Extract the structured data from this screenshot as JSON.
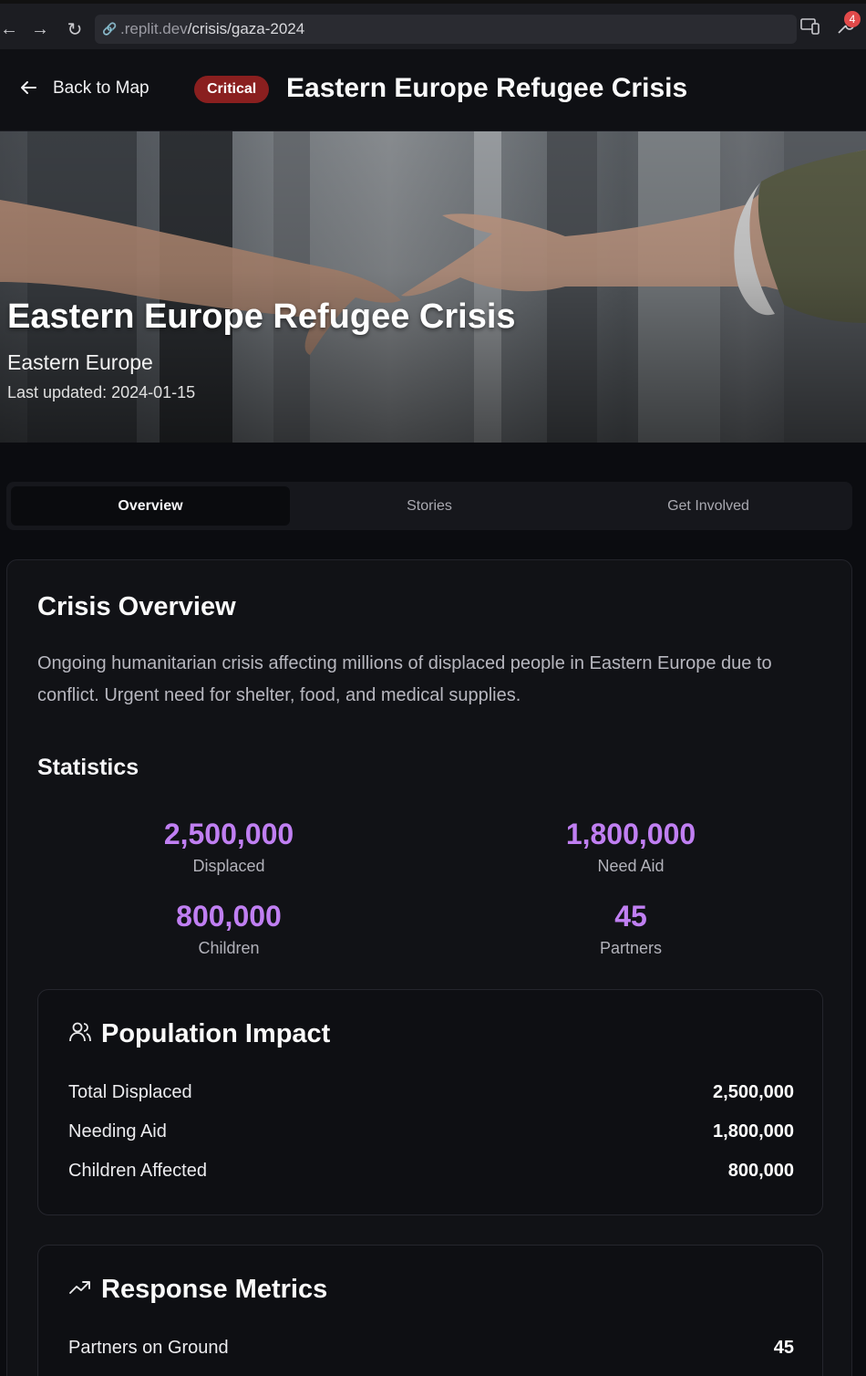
{
  "browser": {
    "url_prefix": ".replit.dev",
    "url_path": "/crisis/gaza-2024",
    "notification_count": "4"
  },
  "header": {
    "back_label": "Back to Map",
    "severity_badge": "Critical",
    "title": "Eastern Europe Refugee Crisis"
  },
  "hero": {
    "title": "Eastern Europe Refugee Crisis",
    "region": "Eastern Europe",
    "last_updated": "Last updated: 2024-01-15"
  },
  "tabs": [
    {
      "label": "Overview",
      "active": true
    },
    {
      "label": "Stories",
      "active": false
    },
    {
      "label": "Get Involved",
      "active": false
    }
  ],
  "overview": {
    "title": "Crisis Overview",
    "description": "Ongoing humanitarian crisis affecting millions of displaced people in Eastern Europe due to conflict. Urgent need for shelter, food, and medical supplies.",
    "statistics_title": "Statistics",
    "stats": [
      {
        "value": "2,500,000",
        "label": "Displaced"
      },
      {
        "value": "1,800,000",
        "label": "Need Aid"
      },
      {
        "value": "800,000",
        "label": "Children"
      },
      {
        "value": "45",
        "label": "Partners"
      }
    ]
  },
  "population_impact": {
    "title": "Population Impact",
    "icon": "users-icon",
    "rows": [
      {
        "label": "Total Displaced",
        "value": "2,500,000"
      },
      {
        "label": "Needing Aid",
        "value": "1,800,000"
      },
      {
        "label": "Children Affected",
        "value": "800,000"
      }
    ]
  },
  "response_metrics": {
    "title": "Response Metrics",
    "icon": "trending-up-icon",
    "rows": [
      {
        "label": "Partners on Ground",
        "value": "45"
      }
    ]
  },
  "colors": {
    "accent_purple": "#c07ff2",
    "critical_red": "#8a1f1f",
    "background": "#0b0c10"
  }
}
